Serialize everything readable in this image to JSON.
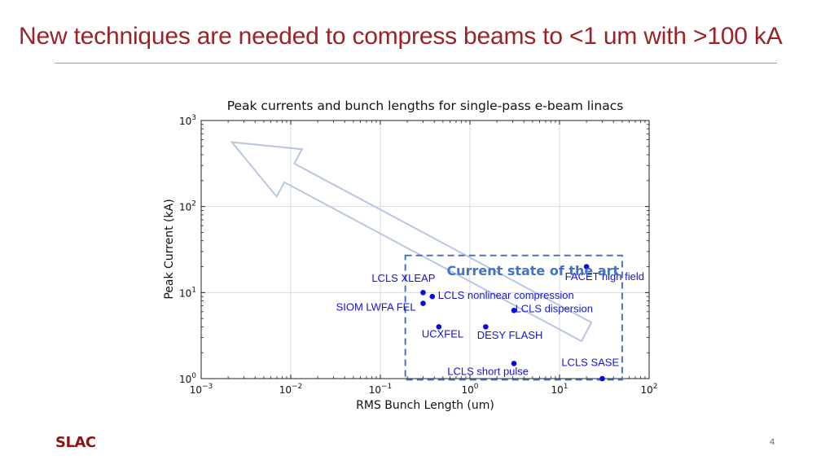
{
  "slide": {
    "title": "New techniques are needed to compress beams to <1 um with >100 kA",
    "logo": "SLAC",
    "page_number": "4"
  },
  "colors": {
    "title": "#9b2226",
    "points": "#0a0adc",
    "box": "#4a74b8",
    "arrow": "#b8c6e0",
    "annotation": "#4472c4"
  },
  "chart_data": {
    "type": "scatter",
    "title": "Peak currents and bunch lengths for single-pass e-beam linacs",
    "xlabel": "RMS Bunch Length (um)",
    "ylabel": "Peak Current (kA)",
    "xscale": "log",
    "yscale": "log",
    "xlim": [
      0.001,
      100
    ],
    "ylim": [
      1,
      1000
    ],
    "grid": true,
    "x_ticks": [
      {
        "value": 0.001,
        "base": "10",
        "exp": "−3"
      },
      {
        "value": 0.01,
        "base": "10",
        "exp": "−2"
      },
      {
        "value": 0.1,
        "base": "10",
        "exp": "−1"
      },
      {
        "value": 1,
        "base": "10",
        "exp": "0"
      },
      {
        "value": 10,
        "base": "10",
        "exp": "1"
      },
      {
        "value": 100,
        "base": "10",
        "exp": "2"
      }
    ],
    "y_ticks": [
      {
        "value": 1,
        "base": "10",
        "exp": "0"
      },
      {
        "value": 10,
        "base": "10",
        "exp": "1"
      },
      {
        "value": 100,
        "base": "10",
        "exp": "2"
      },
      {
        "value": 1000,
        "base": "10",
        "exp": "3"
      }
    ],
    "points": [
      {
        "x": 20,
        "y": 20
      },
      {
        "x": 0.3,
        "y": 10
      },
      {
        "x": 0.38,
        "y": 9
      },
      {
        "x": 0.3,
        "y": 7.5
      },
      {
        "x": 3.1,
        "y": 6.2
      },
      {
        "x": 0.45,
        "y": 4
      },
      {
        "x": 1.5,
        "y": 4
      },
      {
        "x": 3.1,
        "y": 1.5
      },
      {
        "x": 30,
        "y": 1
      }
    ],
    "labels": [
      {
        "text": "FACET high field",
        "x": 11.5,
        "y": 14
      },
      {
        "text": "LCLS XLEAP",
        "x": 0.08,
        "y": 13.3
      },
      {
        "text": "LCLS nonlinear compression",
        "x": 0.44,
        "y": 8.5
      },
      {
        "text": "SIOM LWFA FEL",
        "x": 0.032,
        "y": 6.2
      },
      {
        "text": "LCLS dispersion",
        "x": 3.2,
        "y": 5.9
      },
      {
        "text": "UCXFEL",
        "x": 0.29,
        "y": 3.0
      },
      {
        "text": "DESY FLASH",
        "x": 1.2,
        "y": 2.9
      },
      {
        "text": "LCLS SASE",
        "x": 10.5,
        "y": 1.4
      },
      {
        "text": "LCLS short pulse",
        "x": 0.56,
        "y": 1.1
      }
    ],
    "annotations": [
      {
        "text": "Current state of the art",
        "x": 0.55,
        "y": 16
      }
    ],
    "box": {
      "x0": 0.19,
      "x1": 50,
      "y0": 0.97,
      "y1": 27
    },
    "arrow": {
      "tail": {
        "x": 20,
        "y": 3.5
      },
      "head": {
        "x": 0.0022,
        "y": 560
      }
    }
  }
}
